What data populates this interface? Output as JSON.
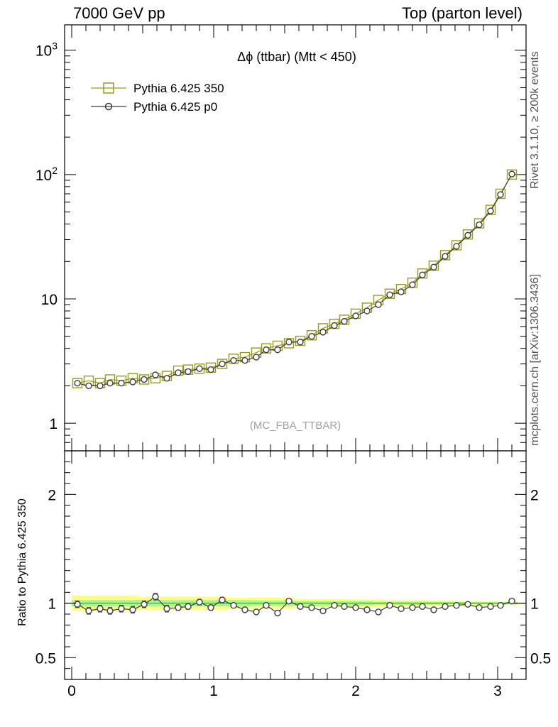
{
  "header": {
    "left": "7000 GeV pp",
    "right": "Top (parton level)"
  },
  "side_labels": {
    "rivet": "Rivet 3.1.10, ≥ 200k events",
    "mcplots": "mcplots.cern.ch [arXiv:1306.3436]"
  },
  "colors": {
    "series_ref": "#9a9a1e",
    "series_p0": "#3c3c3c",
    "band_inner": "#99ff99",
    "band_outer": "#ffff88",
    "watermark": "#a0a0a0"
  },
  "chart_data": {
    "type": "line",
    "title": "Δϕ (ttbar) (Mtt < 450)",
    "watermark": "(MC_FBA_TTBAR)",
    "legend_position": "top-left",
    "main": {
      "yscale": "log",
      "ylim": [
        0.6,
        1600
      ],
      "y_ticks": [
        {
          "v": 1,
          "label": "1"
        },
        {
          "v": 10,
          "label": "10"
        },
        {
          "v": 100,
          "label": "10^2"
        },
        {
          "v": 1000,
          "label": "10^3"
        }
      ]
    },
    "ratio": {
      "ylabel": "Ratio to Pythia 6.425 350",
      "ylim": [
        0.3,
        2.4
      ],
      "y_ticks": [
        {
          "v": 0.5,
          "label": "0.5"
        },
        {
          "v": 1,
          "label": "1"
        },
        {
          "v": 2,
          "label": "2"
        }
      ]
    },
    "xlim": [
      -0.05,
      3.2
    ],
    "x_ticks": [
      {
        "v": 0,
        "label": "0"
      },
      {
        "v": 1,
        "label": "1"
      },
      {
        "v": 2,
        "label": "2"
      },
      {
        "v": 3,
        "label": "3"
      }
    ],
    "x": [
      0.04,
      0.12,
      0.2,
      0.27,
      0.35,
      0.43,
      0.51,
      0.59,
      0.67,
      0.75,
      0.82,
      0.9,
      0.98,
      1.06,
      1.14,
      1.22,
      1.3,
      1.37,
      1.45,
      1.53,
      1.61,
      1.69,
      1.77,
      1.85,
      1.92,
      2.0,
      2.08,
      2.16,
      2.24,
      2.32,
      2.4,
      2.47,
      2.55,
      2.63,
      2.71,
      2.79,
      2.87,
      2.95,
      3.02,
      3.1
    ],
    "series": [
      {
        "name": "Pythia 6.425 350",
        "marker": "square",
        "values": [
          2.1,
          2.2,
          2.1,
          2.25,
          2.2,
          2.3,
          2.25,
          2.3,
          2.4,
          2.65,
          2.7,
          2.75,
          2.8,
          3.0,
          3.3,
          3.4,
          3.7,
          4.0,
          4.2,
          4.4,
          4.6,
          5.1,
          5.8,
          6.3,
          6.8,
          7.6,
          8.5,
          9.8,
          11.0,
          12.0,
          13.5,
          16.0,
          18.5,
          22.5,
          27.0,
          33.0,
          40.5,
          52.0,
          70.0,
          100.0
        ],
        "ratio": [
          1,
          1,
          1,
          1,
          1,
          1,
          1,
          1,
          1,
          1,
          1,
          1,
          1,
          1,
          1,
          1,
          1,
          1,
          1,
          1,
          1,
          1,
          1,
          1,
          1,
          1,
          1,
          1,
          1,
          1,
          1,
          1,
          1,
          1,
          1,
          1,
          1,
          1,
          1,
          1
        ],
        "band_inner": [
          0.03,
          0.03,
          0.03,
          0.03,
          0.03,
          0.03,
          0.03,
          0.03,
          0.03,
          0.03,
          0.03,
          0.03,
          0.03,
          0.03,
          0.03,
          0.03,
          0.025,
          0.025,
          0.025,
          0.025,
          0.02,
          0.02,
          0.02,
          0.02,
          0.02,
          0.02,
          0.02,
          0.015,
          0.015,
          0.015,
          0.015,
          0.015,
          0.012,
          0.012,
          0.012,
          0.01,
          0.01,
          0.01,
          0.01,
          0.01
        ],
        "band_outer": [
          0.07,
          0.07,
          0.07,
          0.07,
          0.07,
          0.07,
          0.06,
          0.06,
          0.06,
          0.06,
          0.06,
          0.06,
          0.06,
          0.06,
          0.05,
          0.05,
          0.05,
          0.05,
          0.05,
          0.05,
          0.04,
          0.04,
          0.04,
          0.04,
          0.04,
          0.035,
          0.035,
          0.035,
          0.03,
          0.03,
          0.03,
          0.03,
          0.025,
          0.025,
          0.025,
          0.02,
          0.02,
          0.02,
          0.015,
          0.015
        ]
      },
      {
        "name": "Pythia 6.425 p0",
        "marker": "circle",
        "values": [
          2.1,
          2.0,
          2.0,
          2.1,
          2.1,
          2.15,
          2.25,
          2.45,
          2.3,
          2.55,
          2.6,
          2.75,
          2.7,
          3.0,
          3.2,
          3.2,
          3.4,
          3.9,
          3.9,
          4.5,
          4.5,
          5.0,
          5.4,
          6.1,
          6.6,
          7.3,
          8.0,
          9.0,
          10.8,
          11.4,
          13.0,
          15.6,
          18.0,
          22.0,
          26.5,
          32.5,
          39.5,
          51.0,
          69.0,
          101.0
        ],
        "ratio": [
          0.99,
          0.93,
          0.95,
          0.93,
          0.95,
          0.94,
          0.99,
          1.06,
          0.95,
          0.96,
          0.97,
          1.01,
          0.96,
          1.03,
          0.98,
          0.94,
          0.92,
          0.98,
          0.91,
          1.02,
          0.97,
          0.96,
          0.93,
          0.98,
          0.97,
          0.96,
          0.94,
          0.92,
          0.98,
          0.95,
          0.96,
          0.97,
          0.94,
          0.97,
          0.98,
          0.99,
          0.96,
          0.97,
          0.98,
          1.02
        ],
        "ratio_err": [
          0.03,
          0.03,
          0.03,
          0.03,
          0.03,
          0.03,
          0.03,
          0.03,
          0.03,
          0.025,
          0.025,
          0.025,
          0.025,
          0.025,
          0.02,
          0.02,
          0.02,
          0.02,
          0.02,
          0.015,
          0.01,
          0.01,
          0.01,
          0.01,
          0.01,
          0.01,
          0.01,
          0.01,
          0.01,
          0.01,
          0.01,
          0.01,
          0.01,
          0.01,
          0.01,
          0.01,
          0.01,
          0.01,
          0.01,
          0.01
        ]
      }
    ]
  }
}
